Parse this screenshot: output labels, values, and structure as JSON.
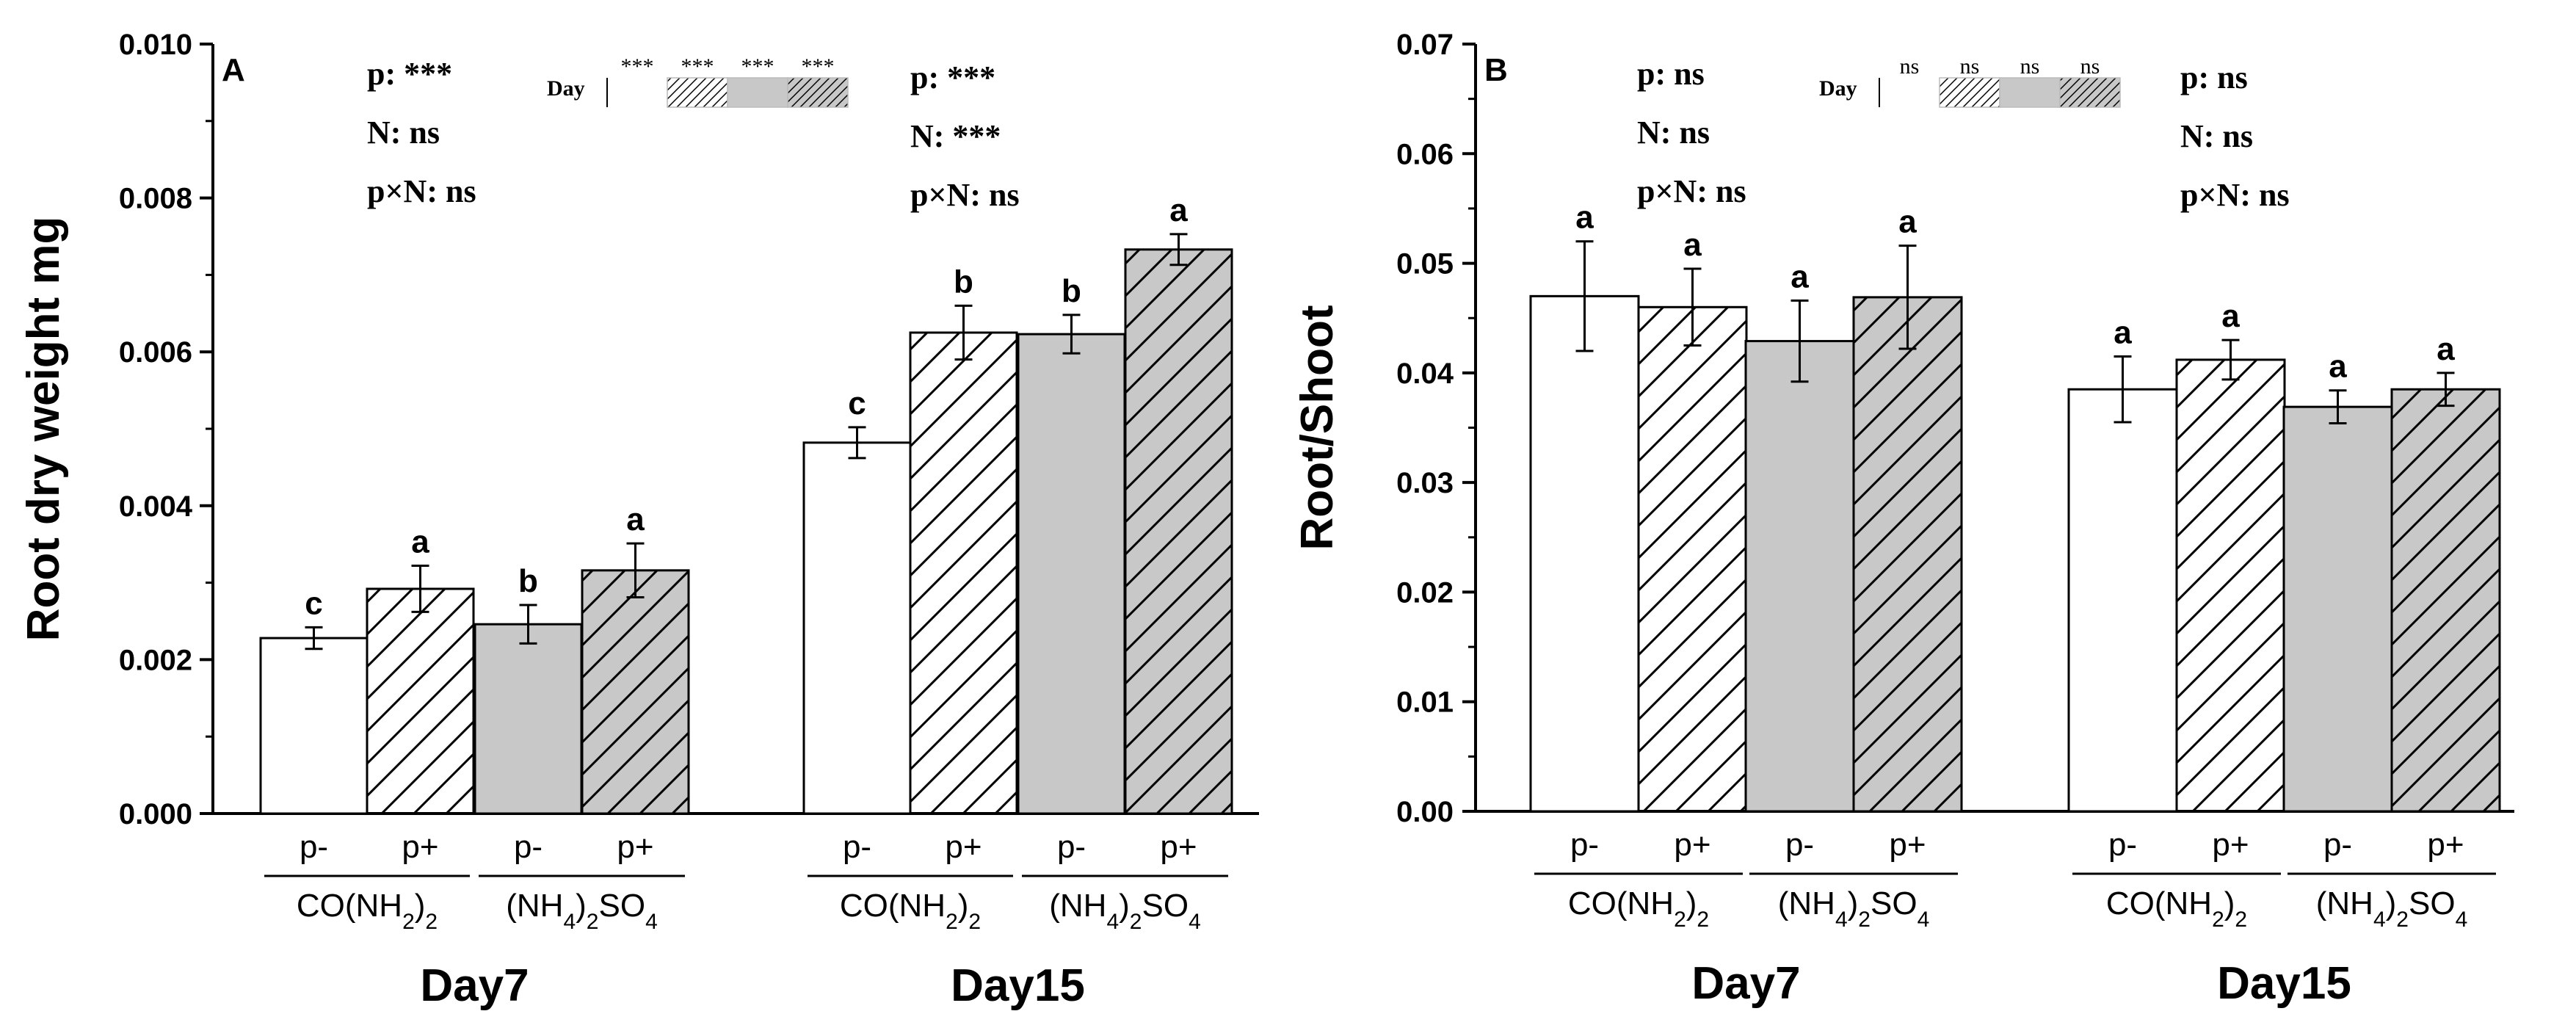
{
  "chart_data": [
    {
      "type": "bar",
      "panel_label": "A",
      "ylabel": "Root dry weight  mg",
      "ylim": [
        0,
        0.01
      ],
      "yticks": [
        "0.000",
        "0.002",
        "0.004",
        "0.006",
        "0.008",
        "0.010"
      ],
      "treatments": [
        "p-",
        "p+",
        "p-",
        "p+"
      ],
      "n_sources": [
        "CO(NH2)2",
        "(NH4)2SO4"
      ],
      "groups": [
        {
          "name": "Day7",
          "values": [
            0.00228,
            0.00292,
            0.00246,
            0.00316
          ],
          "errors": [
            0.00014,
            0.0003,
            0.00025,
            0.00035
          ],
          "letters": [
            "c",
            "a",
            "b",
            "a"
          ]
        },
        {
          "name": "Day15",
          "values": [
            0.00482,
            0.00625,
            0.00623,
            0.00733
          ],
          "errors": [
            0.0002,
            0.00035,
            0.00025,
            0.0002
          ],
          "letters": [
            "c",
            "b",
            "b",
            "a"
          ]
        }
      ],
      "stats": [
        [
          "p: ***",
          "N: ns",
          "p×N: ns"
        ],
        [
          "p: ***",
          "N: ***",
          "p×N: ns"
        ]
      ],
      "day_legend": {
        "label": "Day",
        "marks": [
          "***",
          "***",
          "***",
          "***"
        ]
      }
    },
    {
      "type": "bar",
      "panel_label": "B",
      "ylabel": "Root/Shoot",
      "ylim": [
        0,
        0.07
      ],
      "yticks": [
        "0.00",
        "0.01",
        "0.02",
        "0.03",
        "0.04",
        "0.05",
        "0.06",
        "0.07"
      ],
      "treatments": [
        "p-",
        "p+",
        "p-",
        "p+"
      ],
      "n_sources": [
        "CO(NH2)2",
        "(NH4)2SO4"
      ],
      "groups": [
        {
          "name": "Day7",
          "values": [
            0.047,
            0.046,
            0.0429,
            0.0469
          ],
          "errors": [
            0.005,
            0.0035,
            0.0037,
            0.0047
          ],
          "letters": [
            "a",
            "a",
            "a",
            "a"
          ]
        },
        {
          "name": "Day15",
          "values": [
            0.0385,
            0.0412,
            0.0369,
            0.0385
          ],
          "errors": [
            0.003,
            0.0018,
            0.0015,
            0.0015
          ],
          "letters": [
            "a",
            "a",
            "a",
            "a"
          ]
        }
      ],
      "stats": [
        [
          "p: ns",
          "N: ns",
          "p×N: ns"
        ],
        [
          "p: ns",
          "N: ns",
          "p×N: ns"
        ]
      ],
      "day_legend": {
        "label": "Day",
        "marks": [
          "ns",
          "ns",
          "ns",
          "ns"
        ]
      }
    }
  ]
}
